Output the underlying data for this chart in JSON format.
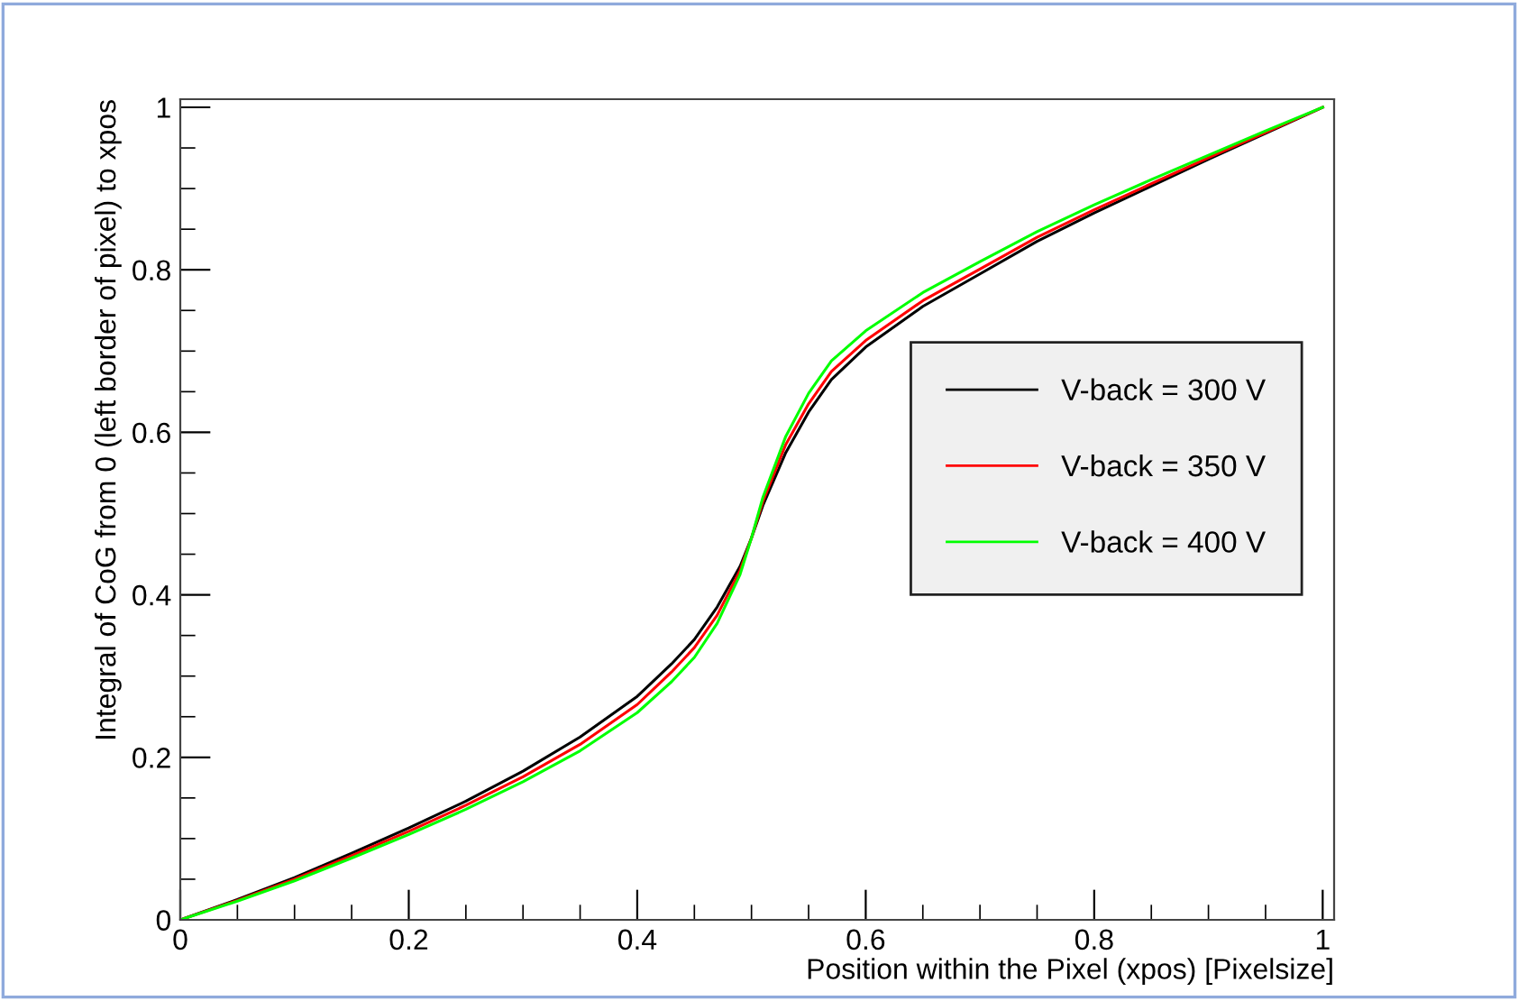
{
  "chart_data": {
    "type": "line",
    "xlabel": "Position within the Pixel (xpos) [Pixelsize]",
    "ylabel": "Integral of CoG from 0 (left border of pixel) to xpos",
    "x": [
      0,
      0.05,
      0.1,
      0.15,
      0.2,
      0.25,
      0.3,
      0.35,
      0.4,
      0.43,
      0.45,
      0.47,
      0.49,
      0.5,
      0.51,
      0.53,
      0.55,
      0.57,
      0.6,
      0.65,
      0.7,
      0.75,
      0.8,
      0.85,
      0.9,
      0.95,
      1
    ],
    "series": [
      {
        "name": "V-back = 300 V",
        "color": "#000000",
        "values": [
          0,
          0.025,
          0.052,
          0.082,
          0.113,
          0.146,
          0.183,
          0.225,
          0.275,
          0.315,
          0.345,
          0.385,
          0.435,
          0.47,
          0.51,
          0.575,
          0.625,
          0.665,
          0.705,
          0.755,
          0.795,
          0.835,
          0.87,
          0.903,
          0.936,
          0.968,
          1
        ]
      },
      {
        "name": "V-back = 350 V",
        "color": "#ff0000",
        "values": [
          0,
          0.024,
          0.05,
          0.079,
          0.109,
          0.141,
          0.176,
          0.216,
          0.265,
          0.305,
          0.335,
          0.375,
          0.43,
          0.47,
          0.515,
          0.585,
          0.635,
          0.675,
          0.713,
          0.762,
          0.801,
          0.84,
          0.874,
          0.906,
          0.938,
          0.969,
          1
        ]
      },
      {
        "name": "V-back = 400 V",
        "color": "#00ff00",
        "values": [
          0,
          0.023,
          0.048,
          0.076,
          0.105,
          0.136,
          0.17,
          0.208,
          0.255,
          0.293,
          0.323,
          0.365,
          0.425,
          0.47,
          0.52,
          0.595,
          0.648,
          0.688,
          0.725,
          0.772,
          0.81,
          0.847,
          0.88,
          0.911,
          0.941,
          0.971,
          1
        ]
      }
    ],
    "xlim": [
      0,
      1.01
    ],
    "ylim": [
      0,
      1.01
    ],
    "xticks": [
      0,
      0.2,
      0.4,
      0.6,
      0.8,
      1
    ],
    "yticks": [
      0,
      0.2,
      0.4,
      0.6,
      0.8,
      1
    ],
    "legend": "right",
    "grid": false
  }
}
